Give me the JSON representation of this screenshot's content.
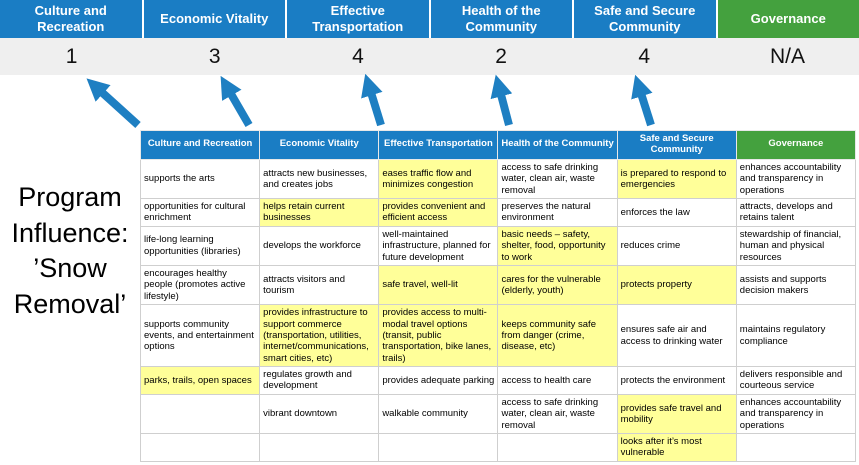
{
  "colors": {
    "pillar_blue": "#1A7DC4",
    "governance_green": "#44A13E",
    "highlight_yellow": "#FFFF99",
    "score_band_gray": "#EFEFEF",
    "arrow_blue": "#1E7FC2",
    "cell_border_gray": "#CFCFCF"
  },
  "side_title": "Program Influence: ’Snow Removal’",
  "pillars": [
    {
      "label": "Culture and Recreation",
      "score": "1",
      "variant": "blue"
    },
    {
      "label": "Economic Vitality",
      "score": "3",
      "variant": "blue"
    },
    {
      "label": "Effective Transportation",
      "score": "4",
      "variant": "blue"
    },
    {
      "label": "Health of the Community",
      "score": "2",
      "variant": "blue"
    },
    {
      "label": "Safe and Secure Community",
      "score": "4",
      "variant": "blue"
    },
    {
      "label": "Governance",
      "score": "N/A",
      "variant": "green"
    }
  ],
  "matrix": {
    "headers": [
      {
        "label": "Culture and Recreation",
        "variant": "blue"
      },
      {
        "label": "Economic Vitality",
        "variant": "blue"
      },
      {
        "label": "Effective Transportation",
        "variant": "blue"
      },
      {
        "label": "Health of the Community",
        "variant": "blue"
      },
      {
        "label": "Safe and Secure Community",
        "variant": "blue"
      },
      {
        "label": "Governance",
        "variant": "green"
      }
    ],
    "rows": [
      [
        {
          "text": "supports the arts",
          "highlight": false
        },
        {
          "text": "attracts new businesses, and creates jobs",
          "highlight": false
        },
        {
          "text": "eases traffic flow and minimizes congestion",
          "highlight": true
        },
        {
          "text": "access to safe drinking water, clean air, waste removal",
          "highlight": false
        },
        {
          "text": "is prepared to respond to emergencies",
          "highlight": true
        },
        {
          "text": "enhances accountability and transparency in operations",
          "highlight": false
        }
      ],
      [
        {
          "text": "opportunities for cultural enrichment",
          "highlight": false
        },
        {
          "text": "helps retain current businesses",
          "highlight": true
        },
        {
          "text": "provides convenient and efficient access",
          "highlight": true
        },
        {
          "text": "preserves the natural environment",
          "highlight": false
        },
        {
          "text": "enforces the law",
          "highlight": false
        },
        {
          "text": "attracts, develops and retains talent",
          "highlight": false
        }
      ],
      [
        {
          "text": "life-long learning opportunities (libraries)",
          "highlight": false
        },
        {
          "text": "develops the workforce",
          "highlight": false
        },
        {
          "text": "well-maintained infrastructure, planned for future development",
          "highlight": false
        },
        {
          "text": "basic needs – safety, shelter, food, opportunity to work",
          "highlight": true
        },
        {
          "text": "reduces crime",
          "highlight": false
        },
        {
          "text": "stewardship of financial, human and physical resources",
          "highlight": false
        }
      ],
      [
        {
          "text": "encourages healthy people (promotes active lifestyle)",
          "highlight": false
        },
        {
          "text": "attracts visitors and tourism",
          "highlight": false
        },
        {
          "text": "safe travel, well-lit",
          "highlight": true
        },
        {
          "text": "cares for the vulnerable (elderly, youth)",
          "highlight": true
        },
        {
          "text": "protects property",
          "highlight": true
        },
        {
          "text": "assists and supports decision makers",
          "highlight": false
        }
      ],
      [
        {
          "text": "supports community events, and entertainment options",
          "highlight": false
        },
        {
          "text": "provides infrastructure to support commerce (transportation, utilities, internet/communications, smart cities, etc)",
          "highlight": true
        },
        {
          "text": "provides access to multi-modal travel options (transit, public transportation, bike lanes, trails)",
          "highlight": true
        },
        {
          "text": "keeps community safe from danger (crime, disease, etc)",
          "highlight": true
        },
        {
          "text": "ensures safe air and access to drinking water",
          "highlight": false
        },
        {
          "text": "maintains regulatory compliance",
          "highlight": false
        }
      ],
      [
        {
          "text": "parks, trails, open spaces",
          "highlight": true
        },
        {
          "text": "regulates growth and development",
          "highlight": false
        },
        {
          "text": "provides adequate parking",
          "highlight": false
        },
        {
          "text": "access to health care",
          "highlight": false
        },
        {
          "text": "protects the environment",
          "highlight": false
        },
        {
          "text": "delivers responsible and courteous service",
          "highlight": false
        }
      ],
      [
        {
          "text": "",
          "highlight": false
        },
        {
          "text": "vibrant downtown",
          "highlight": false
        },
        {
          "text": "walkable community",
          "highlight": false
        },
        {
          "text": "access to safe drinking water, clean air, waste removal",
          "highlight": false
        },
        {
          "text": "provides safe travel and mobility",
          "highlight": true
        },
        {
          "text": "enhances accountability and transparency in operations",
          "highlight": false
        }
      ],
      [
        {
          "text": "",
          "highlight": false
        },
        {
          "text": "",
          "highlight": false
        },
        {
          "text": "",
          "highlight": false
        },
        {
          "text": "",
          "highlight": false
        },
        {
          "text": "looks after it’s most vulnerable",
          "highlight": true
        },
        {
          "text": "",
          "highlight": false
        }
      ]
    ]
  }
}
